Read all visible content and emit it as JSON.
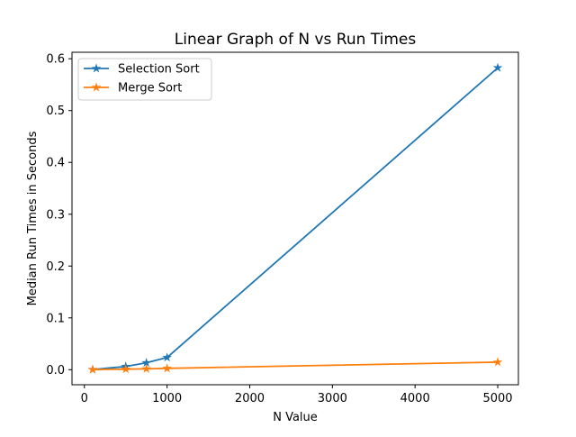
{
  "chart_data": {
    "type": "line",
    "title": "Linear Graph of N vs Run Times",
    "xlabel": "N Value",
    "ylabel": "Median Run Times in Seconds",
    "xlim": [
      -150,
      5250
    ],
    "ylim": [
      -0.029,
      0.6125
    ],
    "xticks": [
      0,
      1000,
      2000,
      3000,
      4000,
      5000
    ],
    "xtick_labels": [
      "0",
      "1000",
      "2000",
      "3000",
      "4000",
      "5000"
    ],
    "yticks": [
      0.0,
      0.1,
      0.2,
      0.3,
      0.4,
      0.5,
      0.6
    ],
    "ytick_labels": [
      "0.0",
      "0.1",
      "0.2",
      "0.3",
      "0.4",
      "0.5",
      "0.6"
    ],
    "grid": false,
    "legend_position": "upper-left",
    "marker": "star",
    "series": [
      {
        "name": "Selection Sort",
        "color": "#1f77b4",
        "x": [
          100,
          500,
          750,
          1000,
          5000
        ],
        "y": [
          0.0003,
          0.0062,
          0.0134,
          0.0235,
          0.5825
        ]
      },
      {
        "name": "Merge Sort",
        "color": "#ff7f0e",
        "x": [
          100,
          500,
          750,
          1000,
          5000
        ],
        "y": [
          0.0002,
          0.0011,
          0.0017,
          0.0026,
          0.0146
        ]
      }
    ]
  }
}
